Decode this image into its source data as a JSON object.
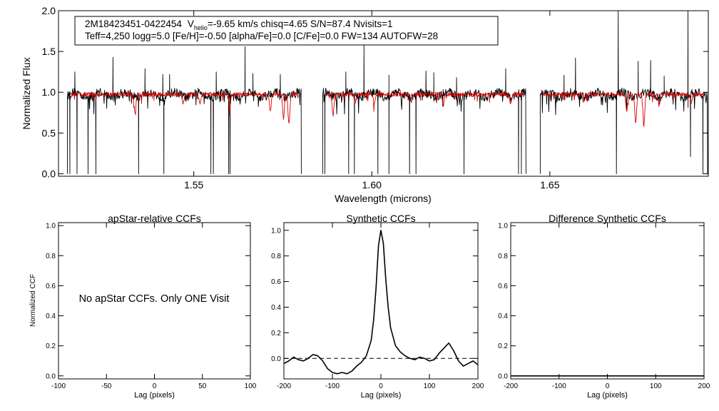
{
  "spectrum_panel": {
    "info_line1": {
      "id": "2M18423451-0422454",
      "vhelio_prefix": "V",
      "vhelio_sub": "helio",
      "vhelio_rest": "=-9.65 km/s  chisq=4.65  S/N=87.4  Nvisits=1"
    },
    "info_line2": "Teff=4,250 logg=5.0 [Fe/H]=-0.50 [alpha/Fe]=0.0 [C/Fe]=0.0 FW=134 AUTOFW=28"
  },
  "ccf_apstar": {
    "message": "No apStar CCFs.  Only ONE Visit"
  },
  "chart_data": [
    {
      "type": "line",
      "name": "spectrum",
      "title": "",
      "xlabel": "Wavelength (microns)",
      "ylabel": "Normalized Flux",
      "xlim": [
        1.512,
        1.6945
      ],
      "ylim": [
        -0.03,
        2.0
      ],
      "xticks": [
        "1.55",
        "1.60",
        "1.65"
      ],
      "xtick_values": [
        1.55,
        1.6,
        1.65
      ],
      "yticks": [
        "0.0",
        "0.5",
        "1.0",
        "1.5",
        "2.0"
      ],
      "ytick_values": [
        0.0,
        0.5,
        1.0,
        1.5,
        2.0
      ],
      "chips": [
        [
          1.5145,
          1.5802
        ],
        [
          1.5862,
          1.6433
        ],
        [
          1.6473,
          1.6943
        ]
      ],
      "series": [
        {
          "name": "observed",
          "color": "#000000",
          "continuum": 0.97,
          "spikes": [
            [
              1.5166,
              1.25
            ],
            [
              1.5273,
              1.43
            ],
            [
              1.5363,
              1.29
            ],
            [
              1.5413,
              1.22
            ],
            [
              1.5432,
              1.22
            ],
            [
              1.5563,
              1.25
            ],
            [
              1.5644,
              1.56
            ],
            [
              1.5666,
              1.23
            ],
            [
              1.5743,
              1.22
            ],
            [
              1.5927,
              1.25
            ],
            [
              1.5978,
              1.58
            ],
            [
              1.6048,
              1.21
            ],
            [
              1.6152,
              1.26
            ],
            [
              1.6174,
              1.24
            ],
            [
              1.6238,
              1.18
            ],
            [
              1.6376,
              1.29
            ],
            [
              1.654,
              1.21
            ],
            [
              1.6572,
              1.42
            ],
            [
              1.6692,
              2.0
            ],
            [
              1.6748,
              1.38
            ],
            [
              1.6783,
              1.39
            ],
            [
              1.6821,
              1.2
            ],
            [
              1.6888,
              2.0
            ]
          ],
          "drops": [
            [
              1.5152,
              0.0
            ],
            [
              1.5172,
              0.0
            ],
            [
              1.5203,
              0.0
            ],
            [
              1.5225,
              0.0
            ],
            [
              1.5345,
              0.0
            ],
            [
              1.5416,
              0.0
            ],
            [
              1.5548,
              0.0
            ],
            [
              1.5555,
              0.0
            ],
            [
              1.5598,
              0.0
            ],
            [
              1.5602,
              0.0
            ],
            [
              1.5868,
              0.0
            ],
            [
              1.5935,
              0.0
            ],
            [
              1.5951,
              0.0
            ],
            [
              1.6017,
              0.0
            ],
            [
              1.6048,
              0.0
            ],
            [
              1.6106,
              0.0
            ],
            [
              1.6124,
              0.0
            ],
            [
              1.6259,
              0.0
            ],
            [
              1.6412,
              0.0
            ],
            [
              1.642,
              0.0
            ],
            [
              1.6433,
              0.0
            ],
            [
              1.6687,
              0.0
            ],
            [
              1.6895,
              0.21
            ],
            [
              1.693,
              0.0
            ]
          ]
        },
        {
          "name": "model",
          "color": "#dd0000",
          "continuum": 0.975,
          "absorptions": [
            [
              1.5335,
              0.74
            ],
            [
              1.547,
              0.86
            ],
            [
              1.5517,
              0.86
            ],
            [
              1.5601,
              0.82
            ],
            [
              1.5715,
              0.78
            ],
            [
              1.5752,
              0.66
            ],
            [
              1.5767,
              0.61
            ],
            [
              1.5891,
              0.72
            ],
            [
              1.5953,
              0.85
            ],
            [
              1.6007,
              0.86
            ],
            [
              1.6111,
              0.87
            ],
            [
              1.6201,
              0.84
            ],
            [
              1.639,
              0.87
            ],
            [
              1.6594,
              0.88
            ],
            [
              1.6716,
              0.76
            ],
            [
              1.6741,
              0.63
            ],
            [
              1.6764,
              0.6
            ],
            [
              1.6806,
              0.89
            ],
            [
              1.6897,
              0.88
            ]
          ]
        }
      ]
    },
    {
      "type": "line",
      "name": "apstar_ccf",
      "title": "apStar-relative CCFs",
      "xlabel": "Lag (pixels)",
      "ylabel": "Normalized CCF",
      "xlim": [
        -100,
        100
      ],
      "ylim": [
        -0.02,
        1.02
      ],
      "xticks": [
        "-100",
        "-50",
        "0",
        "50",
        "100"
      ],
      "xtick_values": [
        -100,
        -50,
        0,
        50,
        100
      ],
      "yticks": [
        "0.0",
        "0.2",
        "0.4",
        "0.6",
        "0.8",
        "1.0"
      ],
      "ytick_values": [
        0.0,
        0.2,
        0.4,
        0.6,
        0.8,
        1.0
      ],
      "series": []
    },
    {
      "type": "line",
      "name": "synthetic_ccf",
      "title": "Synthetic CCFs",
      "xlabel": "Lag (pixels)",
      "ylabel": "",
      "xlim": [
        -200,
        200
      ],
      "ylim": [
        -0.16,
        1.06
      ],
      "xticks": [
        "-200",
        "-100",
        "0",
        "100",
        "200"
      ],
      "xtick_values": [
        -200,
        -100,
        0,
        100,
        200
      ],
      "yticks": [
        "0.0",
        "0.2",
        "0.4",
        "0.6",
        "0.8",
        "1.0"
      ],
      "ytick_values": [
        0.0,
        0.2,
        0.4,
        0.6,
        0.8,
        1.0
      ],
      "zero_line": 0.0,
      "series": [
        {
          "name": "ccf",
          "x": [
            -200,
            -190,
            -180,
            -170,
            -160,
            -150,
            -140,
            -130,
            -120,
            -110,
            -100,
            -90,
            -80,
            -70,
            -60,
            -50,
            -40,
            -30,
            -20,
            -15,
            -10,
            -5,
            0,
            5,
            10,
            15,
            20,
            30,
            40,
            50,
            60,
            70,
            80,
            90,
            100,
            110,
            120,
            130,
            140,
            150,
            160,
            170,
            180,
            190,
            200
          ],
          "y": [
            -0.04,
            -0.02,
            0.01,
            -0.01,
            -0.02,
            0.0,
            0.03,
            0.02,
            -0.02,
            -0.08,
            -0.11,
            -0.12,
            -0.11,
            -0.12,
            -0.1,
            -0.06,
            -0.03,
            0.02,
            0.14,
            0.3,
            0.55,
            0.88,
            1.0,
            0.9,
            0.62,
            0.4,
            0.24,
            0.1,
            0.05,
            0.02,
            0.0,
            -0.01,
            0.01,
            0.0,
            -0.02,
            -0.01,
            0.04,
            0.08,
            0.12,
            0.06,
            -0.02,
            -0.06,
            -0.04,
            -0.02,
            -0.05
          ]
        }
      ]
    },
    {
      "type": "line",
      "name": "difference_ccf",
      "title": "Difference Synthetic CCFs",
      "xlabel": "Lag (pixels)",
      "ylabel": "",
      "xlim": [
        -200,
        200
      ],
      "ylim": [
        -0.02,
        1.02
      ],
      "xticks": [
        "-200",
        "-100",
        "0",
        "100",
        "200"
      ],
      "xtick_values": [
        -200,
        -100,
        0,
        100,
        200
      ],
      "yticks": [
        "0.0",
        "0.2",
        "0.4",
        "0.6",
        "0.8",
        "1.0"
      ],
      "ytick_values": [
        0.0,
        0.2,
        0.4,
        0.6,
        0.8,
        1.0
      ],
      "series": [
        {
          "name": "difference",
          "x": [
            -200,
            200
          ],
          "y": [
            0.0,
            0.0
          ]
        }
      ]
    }
  ]
}
